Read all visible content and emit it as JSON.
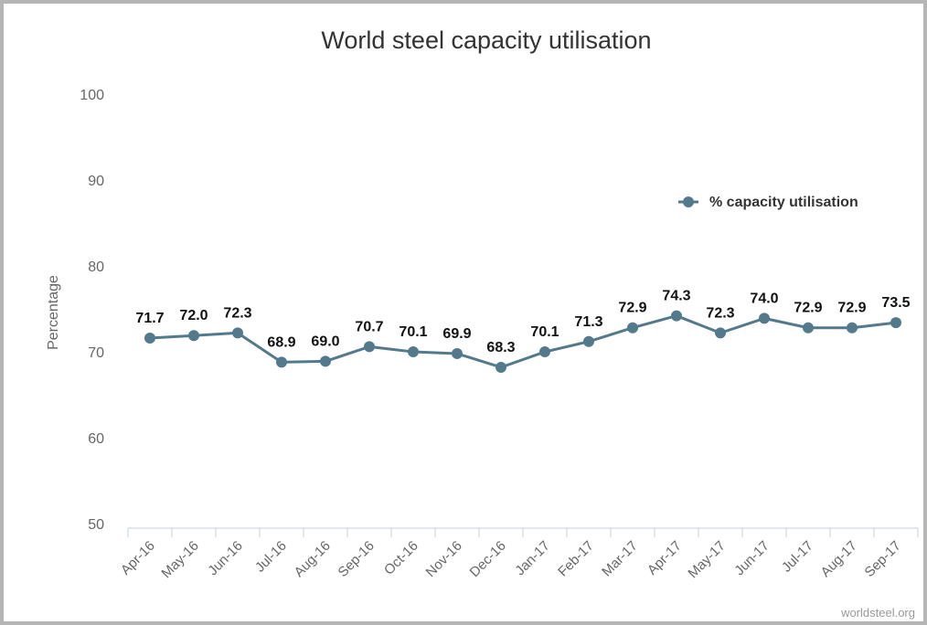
{
  "chart_data": {
    "type": "line",
    "title": "World steel capacity utilisation",
    "ylabel": "Percentage",
    "xlabel": "",
    "ylim": [
      50,
      100
    ],
    "yticks": [
      50,
      60,
      70,
      80,
      90,
      100
    ],
    "categories": [
      "Apr-16",
      "May-16",
      "Jun-16",
      "Jul-16",
      "Aug-16",
      "Sep-16",
      "Oct-16",
      "Nov-16",
      "Dec-16",
      "Jan-17",
      "Feb-17",
      "Mar-17",
      "Apr-17",
      "May-17",
      "Jun-17",
      "Jul-17",
      "Aug-17",
      "Sep-17"
    ],
    "series": [
      {
        "name": "% capacity utilisation",
        "values": [
          71.7,
          72.0,
          72.3,
          68.9,
          69.0,
          70.7,
          70.1,
          69.9,
          68.3,
          70.1,
          71.3,
          72.9,
          74.3,
          72.3,
          74.0,
          72.9,
          72.9,
          73.5
        ],
        "labels": [
          "71.7",
          "72.0",
          "72.3",
          "68.9",
          "69.0",
          "70.7",
          "70.1",
          "69.9",
          "68.3",
          "70.1",
          "71.3",
          "72.9",
          "74.3",
          "72.3",
          "74.0",
          "72.9",
          "72.9",
          "73.5"
        ],
        "color": "#537a8c"
      }
    ],
    "grid": false,
    "legend_position": "right",
    "credit": "worldsteel.org"
  }
}
